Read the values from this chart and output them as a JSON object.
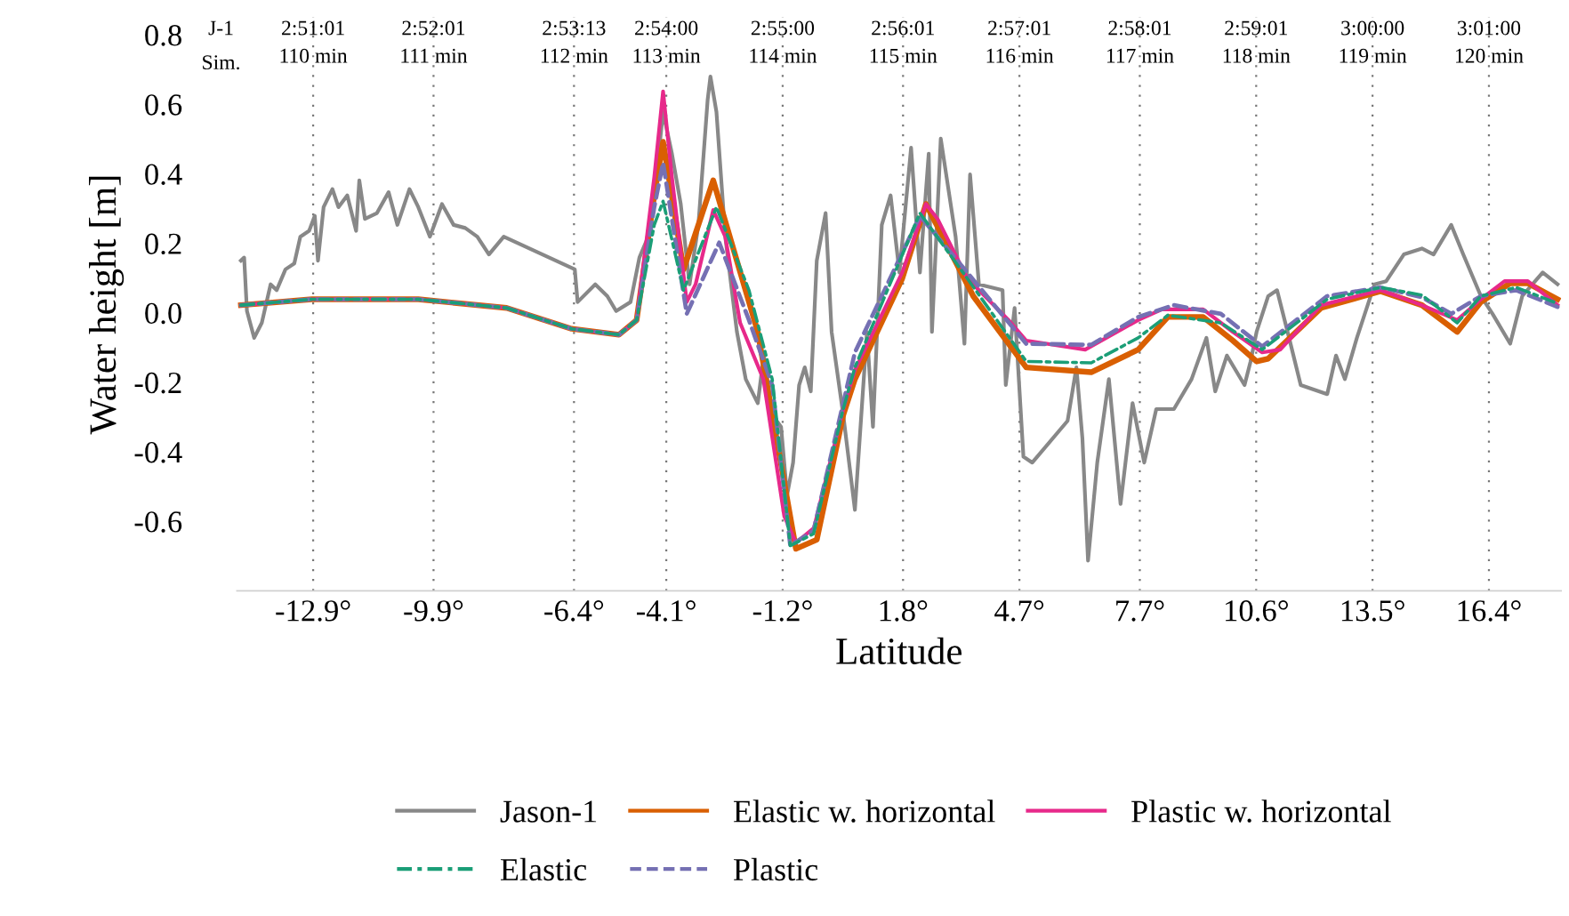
{
  "chart_data": {
    "type": "line",
    "xlabel": "Latitude",
    "ylabel": "Water height [m]",
    "xlim": [
      -14.8,
      18.2
    ],
    "ylim": [
      -0.8,
      0.85
    ],
    "xticks": [
      {
        "value": -12.9,
        "label": "-12.9°"
      },
      {
        "value": -9.9,
        "label": "-9.9°"
      },
      {
        "value": -6.4,
        "label": "-6.4°"
      },
      {
        "value": -4.1,
        "label": "-4.1°"
      },
      {
        "value": -1.2,
        "label": "-1.2°"
      },
      {
        "value": 1.8,
        "label": "1.8°"
      },
      {
        "value": 4.7,
        "label": "4.7°"
      },
      {
        "value": 7.7,
        "label": "7.7°"
      },
      {
        "value": 10.6,
        "label": "10.6°"
      },
      {
        "value": 13.5,
        "label": "13.5°"
      },
      {
        "value": 16.4,
        "label": "16.4°"
      }
    ],
    "yticks": [
      0.8,
      0.6,
      0.4,
      0.2,
      {
        "value": 0,
        "label": "0.0"
      },
      -0.2,
      -0.4,
      -0.6
    ],
    "annotations": [
      "J-1",
      "Sim.",
      "2:51:01\n110 min",
      "2:52:01\n111 min",
      "2:53:13\n112 min",
      "2:54:00\n113 min",
      "2:55:00\n114 min",
      "2:56:01\n115 min",
      "2:57:01\n116 min",
      "2:58:01\n117 min",
      "2:59:01\n118 min",
      "3:00:00\n119 min",
      "3:01:00\n120 min"
    ],
    "grid": "x",
    "legend": "bottom",
    "series": [
      {
        "name": "Jason-1",
        "color": "#888888",
        "line_style": "solid",
        "x": [
          -14.7,
          -14.62,
          -14.55,
          -14.37,
          -14.18,
          -13.96,
          -13.81,
          -13.59,
          -13.37,
          -13.22,
          -13.0,
          -12.86,
          -12.78,
          -12.64,
          -12.42,
          -12.27,
          -12.05,
          -11.83,
          -11.75,
          -11.61,
          -11.31,
          -11.02,
          -10.8,
          -10.5,
          -10.28,
          -9.99,
          -9.69,
          -9.4,
          -9.11,
          -8.81,
          -8.52,
          -8.15,
          -6.38,
          -6.31,
          -5.87,
          -5.57,
          -5.35,
          -4.99,
          -4.77,
          -4.55,
          -4.32,
          -4.18,
          -3.96,
          -3.74,
          -3.52,
          -3.3,
          -3.07,
          -3.0,
          -2.85,
          -2.63,
          -2.34,
          -2.12,
          -1.82,
          -1.67,
          -1.46,
          -1.24,
          -1.09,
          -0.94,
          -0.79,
          -0.65,
          -0.5,
          -0.35,
          -0.13,
          0.02,
          0.31,
          0.6,
          0.9,
          1.05,
          1.27,
          1.49,
          1.71,
          2.0,
          2.22,
          2.44,
          2.52,
          2.74,
          3.11,
          3.33,
          3.47,
          3.69,
          4.28,
          4.36,
          4.58,
          4.8,
          5.02,
          5.9,
          6.12,
          6.27,
          6.41,
          6.64,
          6.93,
          7.22,
          7.52,
          7.81,
          8.11,
          8.55,
          8.99,
          9.36,
          9.58,
          9.87,
          10.31,
          10.46,
          10.61,
          10.9,
          11.12,
          11.42,
          11.71,
          12.37,
          12.59,
          12.81,
          13.11,
          13.55,
          13.84,
          14.28,
          14.73,
          15.02,
          15.46,
          15.76,
          16.2,
          16.49,
          16.93,
          17.23,
          17.74,
          18.11
        ],
        "values": [
          0.15,
          0.159,
          0.005,
          -0.072,
          -0.029,
          0.082,
          0.065,
          0.125,
          0.142,
          0.219,
          0.236,
          0.279,
          0.15,
          0.304,
          0.356,
          0.304,
          0.338,
          0.236,
          0.381,
          0.27,
          0.287,
          0.347,
          0.253,
          0.356,
          0.304,
          0.219,
          0.313,
          0.253,
          0.244,
          0.219,
          0.168,
          0.219,
          0.125,
          0.031,
          0.082,
          0.048,
          0.005,
          0.031,
          0.159,
          0.219,
          0.424,
          0.578,
          0.458,
          0.313,
          0.082,
          0.253,
          0.612,
          0.68,
          0.578,
          0.219,
          -0.055,
          -0.191,
          -0.26,
          -0.123,
          -0.294,
          -0.328,
          -0.525,
          -0.431,
          -0.208,
          -0.157,
          -0.226,
          0.15,
          0.287,
          -0.055,
          -0.294,
          -0.567,
          -0.055,
          -0.328,
          0.253,
          0.338,
          0.116,
          0.475,
          0.116,
          0.458,
          -0.055,
          0.501,
          0.219,
          -0.089,
          0.398,
          0.082,
          0.065,
          -0.208,
          0.014,
          -0.414,
          -0.431,
          -0.311,
          -0.157,
          -0.362,
          -0.713,
          -0.431,
          -0.191,
          -0.55,
          -0.26,
          -0.431,
          -0.277,
          -0.277,
          -0.191,
          -0.072,
          -0.226,
          -0.123,
          -0.208,
          -0.14,
          -0.055,
          0.048,
          0.065,
          -0.072,
          -0.208,
          -0.234,
          -0.123,
          -0.191,
          -0.072,
          0.082,
          0.091,
          0.168,
          0.185,
          0.168,
          0.253,
          0.168,
          0.048,
          -0.003,
          -0.089,
          0.048,
          0.116,
          0.082
        ]
      },
      {
        "name": "Elastic w. horizontal",
        "color": "#d95f02",
        "line_style": "solid",
        "x": [
          -14.7,
          -12.93,
          -10.28,
          -8.08,
          -6.46,
          -5.28,
          -4.84,
          -4.4,
          -4.18,
          -3.67,
          -2.93,
          -1.82,
          -0.87,
          -0.35,
          0.31,
          0.6,
          1.78,
          2.37,
          3.55,
          4.87,
          6.49,
          7.66,
          8.4,
          9.28,
          10.02,
          10.61,
          10.9,
          12.22,
          13.7,
          14.73,
          15.61,
          16.2,
          16.93,
          17.37,
          18.11
        ],
        "values": [
          0.022,
          0.039,
          0.039,
          0.014,
          -0.046,
          -0.063,
          -0.021,
          0.338,
          0.492,
          0.125,
          0.381,
          -0.055,
          -0.679,
          -0.653,
          -0.294,
          -0.191,
          0.099,
          0.313,
          0.048,
          -0.157,
          -0.171,
          -0.106,
          -0.012,
          -0.012,
          -0.08,
          -0.14,
          -0.132,
          0.014,
          0.062,
          0.022,
          -0.055,
          0.031,
          0.085,
          0.085,
          0.039
        ]
      },
      {
        "name": "Plastic w. horizontal",
        "color": "#e7298a",
        "line_style": "solid",
        "x": [
          -14.7,
          -12.93,
          -10.28,
          -8.08,
          -6.46,
          -5.28,
          -4.84,
          -4.4,
          -4.18,
          -3.96,
          -3.59,
          -3.37,
          -2.93,
          -2.63,
          -2.26,
          -1.68,
          -1.16,
          -0.87,
          -0.42,
          0.31,
          0.6,
          1.78,
          2.37,
          2.66,
          3.4,
          4.43,
          4.87,
          6.34,
          7.66,
          8.25,
          9.28,
          10.02,
          10.75,
          11.2,
          12.22,
          13.7,
          14.73,
          15.61,
          16.2,
          16.79,
          17.37,
          18.11
        ],
        "values": [
          0.022,
          0.039,
          0.039,
          0.014,
          -0.046,
          -0.063,
          -0.021,
          0.39,
          0.637,
          0.39,
          0.031,
          0.082,
          0.296,
          0.219,
          -0.029,
          -0.191,
          -0.585,
          -0.662,
          -0.619,
          -0.277,
          -0.165,
          0.116,
          0.313,
          0.27,
          0.099,
          -0.021,
          -0.08,
          -0.106,
          -0.021,
          0.01,
          0.01,
          -0.055,
          -0.114,
          -0.106,
          0.022,
          0.065,
          0.022,
          -0.021,
          0.039,
          0.091,
          0.091,
          0.022
        ]
      },
      {
        "name": "Elastic",
        "color": "#1b9e77",
        "line_style": "dashdot",
        "x": [
          -14.7,
          -12.93,
          -10.28,
          -8.08,
          -6.46,
          -5.28,
          -4.84,
          -4.4,
          -4.18,
          -3.67,
          -2.85,
          -2.04,
          -1.46,
          -1.01,
          -0.43,
          0.31,
          0.6,
          2.22,
          3.4,
          4.87,
          6.49,
          7.66,
          8.4,
          9.72,
          10.75,
          12.37,
          13.7,
          14.73,
          15.61,
          16.2,
          17.08,
          18.11
        ],
        "values": [
          0.022,
          0.039,
          0.039,
          0.014,
          -0.046,
          -0.063,
          -0.021,
          0.253,
          0.321,
          0.065,
          0.304,
          0.065,
          -0.191,
          -0.67,
          -0.636,
          -0.277,
          -0.157,
          0.287,
          0.099,
          -0.14,
          -0.144,
          -0.072,
          -0.007,
          -0.029,
          -0.106,
          0.039,
          0.073,
          0.051,
          -0.029,
          0.048,
          0.073,
          0.027
        ]
      },
      {
        "name": "Plastic",
        "color": "#7570b3",
        "line_style": "dashed",
        "x": [
          -14.7,
          -12.93,
          -10.28,
          -8.08,
          -6.46,
          -5.28,
          -4.84,
          -4.4,
          -4.18,
          -3.59,
          -2.78,
          -2.04,
          -1.46,
          -1.01,
          -0.43,
          0.31,
          0.6,
          2.22,
          3.4,
          4.87,
          6.49,
          7.66,
          8.55,
          9.72,
          10.75,
          12.37,
          13.7,
          14.73,
          15.46,
          16.2,
          17.08,
          18.11
        ],
        "values": [
          0.022,
          0.039,
          0.039,
          0.014,
          -0.046,
          -0.063,
          -0.021,
          0.304,
          0.432,
          -0.003,
          0.202,
          -0.021,
          -0.208,
          -0.67,
          -0.627,
          -0.26,
          -0.114,
          0.279,
          0.116,
          -0.089,
          -0.092,
          -0.012,
          0.022,
          -0.003,
          -0.097,
          0.048,
          0.073,
          0.045,
          -0.003,
          0.048,
          0.065,
          0.017
        ]
      }
    ]
  }
}
